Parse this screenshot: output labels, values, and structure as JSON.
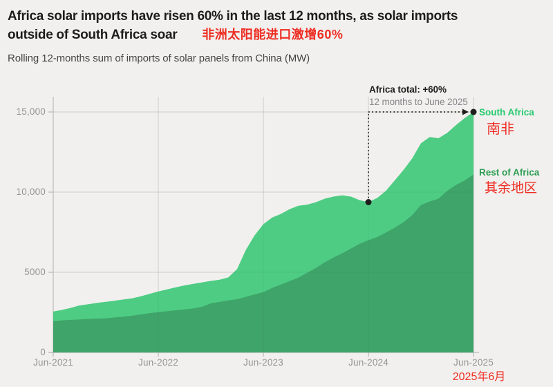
{
  "header": {
    "title_line1": "Africa solar imports have risen 60% in the last 12 months, as solar imports",
    "title_line2": "outside of South Africa soar",
    "title_note_zh": "非洲太阳能进口激增60%",
    "subtitle": "Rolling 12-months sum of imports of solar panels from China (MW)"
  },
  "chart_data": {
    "type": "area",
    "stacked": true,
    "unit": "MW",
    "x_start": "Jun-2021",
    "x_end": "Jun-2025",
    "x_tick_labels": [
      "Jun-2021",
      "Jun-2022",
      "Jun-2023",
      "Jun-2024",
      "Jun-2025"
    ],
    "x_tick_indices": [
      0,
      12,
      24,
      36,
      48
    ],
    "y_tick_labels": [
      "0",
      "5000",
      "10,000",
      "15,000"
    ],
    "y_tick_values": [
      0,
      5000,
      10000,
      15000
    ],
    "ylim": [
      0,
      16000
    ],
    "grid": true,
    "series": [
      {
        "name": "Rest of Africa",
        "color": "#3fa469",
        "values": [
          1950,
          2000,
          2030,
          2060,
          2090,
          2110,
          2130,
          2180,
          2230,
          2290,
          2370,
          2450,
          2520,
          2570,
          2630,
          2680,
          2750,
          2850,
          3060,
          3150,
          3240,
          3320,
          3470,
          3620,
          3760,
          4020,
          4230,
          4450,
          4670,
          4970,
          5270,
          5620,
          5920,
          6180,
          6480,
          6780,
          7000,
          7200,
          7480,
          7780,
          8120,
          8560,
          9200,
          9420,
          9590,
          10080,
          10450,
          10730,
          11100
        ]
      },
      {
        "name": "South Africa",
        "color": "#4ecc83",
        "values": [
          600,
          650,
          750,
          870,
          920,
          980,
          1030,
          1050,
          1070,
          1080,
          1130,
          1200,
          1280,
          1360,
          1430,
          1500,
          1530,
          1520,
          1400,
          1390,
          1440,
          1880,
          2930,
          3680,
          4240,
          4400,
          4410,
          4490,
          4480,
          4250,
          4100,
          3970,
          3800,
          3620,
          3240,
          2720,
          2375,
          2440,
          2600,
          2950,
          3260,
          3540,
          3850,
          4020,
          3770,
          3620,
          3730,
          3890,
          3900
        ]
      }
    ],
    "totals": {
      "jun_2024": 9375,
      "jun_2025": 15000
    },
    "annotation": {
      "label": "Africa total: +60%",
      "sublabel": "12 months to June 2025",
      "from_month_index": 36,
      "from_total": 9375,
      "to_month_index": 48,
      "to_total": 15000
    },
    "series_labels": {
      "south_africa": "South Africa",
      "south_africa_zh": "南非",
      "rest_of_africa": "Rest of Africa",
      "rest_of_africa_zh": "其余地区"
    },
    "x_end_note_zh": "2025年6月"
  },
  "colors": {
    "background": "#f1f0ee",
    "south_africa_fill": "#4ecc83",
    "rest_of_africa_fill": "#3fa469",
    "south_africa_label": "#27ca6e",
    "rest_of_africa_label": "#2f9e55",
    "red_note": "#ee2d23",
    "grid": "#d8d7d3",
    "axis": "#b9b8b4",
    "tick_text": "#95948f",
    "annotation_dark": "#1e1e1c",
    "annotation_gray": "#85858a"
  }
}
